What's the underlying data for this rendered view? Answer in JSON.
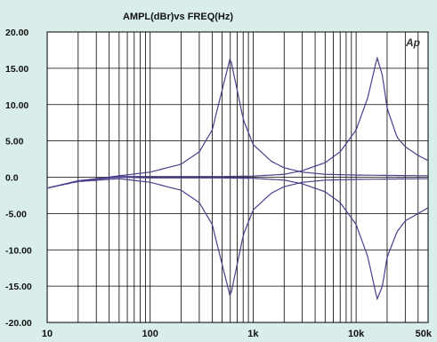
{
  "chart_data": {
    "type": "line",
    "title": "AMPL(dBr)vs FREQ(Hz)",
    "watermark": "Ap",
    "xscale": "log",
    "xlim": [
      10,
      50000
    ],
    "ylim": [
      -20,
      20
    ],
    "x_ticks": [
      {
        "value": 10,
        "label": "10"
      },
      {
        "value": 100,
        "label": "100"
      },
      {
        "value": 1000,
        "label": "1k"
      },
      {
        "value": 10000,
        "label": "10k"
      },
      {
        "value": 50000,
        "label": "50k"
      }
    ],
    "y_ticks": [
      {
        "value": 20,
        "label": "20.00"
      },
      {
        "value": 15,
        "label": "15.00"
      },
      {
        "value": 10,
        "label": "10.00"
      },
      {
        "value": 5,
        "label": "5.00"
      },
      {
        "value": 0,
        "label": "0.0"
      },
      {
        "value": -5,
        "label": "-5.00"
      },
      {
        "value": -10,
        "label": "-10.00"
      },
      {
        "value": -15,
        "label": "-15.00"
      },
      {
        "value": -20,
        "label": "-20.00"
      }
    ],
    "grid": true,
    "colors": {
      "background": "#d9eeeb",
      "plot": "#ffffff",
      "grid": "#000000",
      "line": "#4a3f8c"
    },
    "series": [
      {
        "x": [
          10,
          20,
          50,
          100,
          200,
          300,
          400,
          500,
          600,
          700,
          800,
          1000,
          1500,
          2000,
          3000,
          5000,
          10000,
          20000,
          50000
        ],
        "y": [
          -1.5,
          -0.5,
          0.2,
          0.7,
          1.8,
          3.5,
          6.5,
          12,
          16.5,
          12,
          8,
          4.5,
          2.2,
          1.3,
          0.7,
          0.4,
          0.3,
          0.25,
          0.2
        ]
      },
      {
        "x": [
          10,
          20,
          50,
          100,
          200,
          300,
          400,
          500,
          600,
          700,
          800,
          1000,
          1500,
          2000,
          3000,
          5000,
          10000,
          20000,
          50000
        ],
        "y": [
          -1.5,
          -0.6,
          -0.2,
          -0.7,
          -1.8,
          -3.5,
          -6.5,
          -12,
          -16.5,
          -12,
          -8,
          -4.5,
          -2.2,
          -1.3,
          -0.7,
          -0.4,
          -0.3,
          -0.25,
          -0.2
        ]
      },
      {
        "x": [
          10,
          20,
          50,
          100,
          200,
          500,
          1000,
          2000,
          3000,
          5000,
          7000,
          10000,
          13000,
          16000,
          18000,
          20000,
          25000,
          30000,
          40000,
          50000
        ],
        "y": [
          -1.5,
          -0.5,
          0.1,
          0.1,
          0.1,
          0.1,
          0.15,
          0.4,
          0.9,
          2.0,
          3.5,
          6.5,
          11,
          16.5,
          14,
          9.5,
          5.5,
          4.2,
          3.0,
          2.3
        ]
      },
      {
        "x": [
          10,
          20,
          50,
          100,
          200,
          500,
          1000,
          2000,
          3000,
          5000,
          7000,
          10000,
          13000,
          16000,
          18000,
          20000,
          25000,
          30000,
          40000,
          50000
        ],
        "y": [
          -1.5,
          -0.5,
          0.0,
          -0.1,
          -0.1,
          -0.1,
          -0.15,
          -0.4,
          -0.9,
          -2.0,
          -3.5,
          -6.5,
          -11,
          -16.8,
          -15,
          -11,
          -7.5,
          -6,
          -5,
          -4.2
        ]
      }
    ]
  }
}
